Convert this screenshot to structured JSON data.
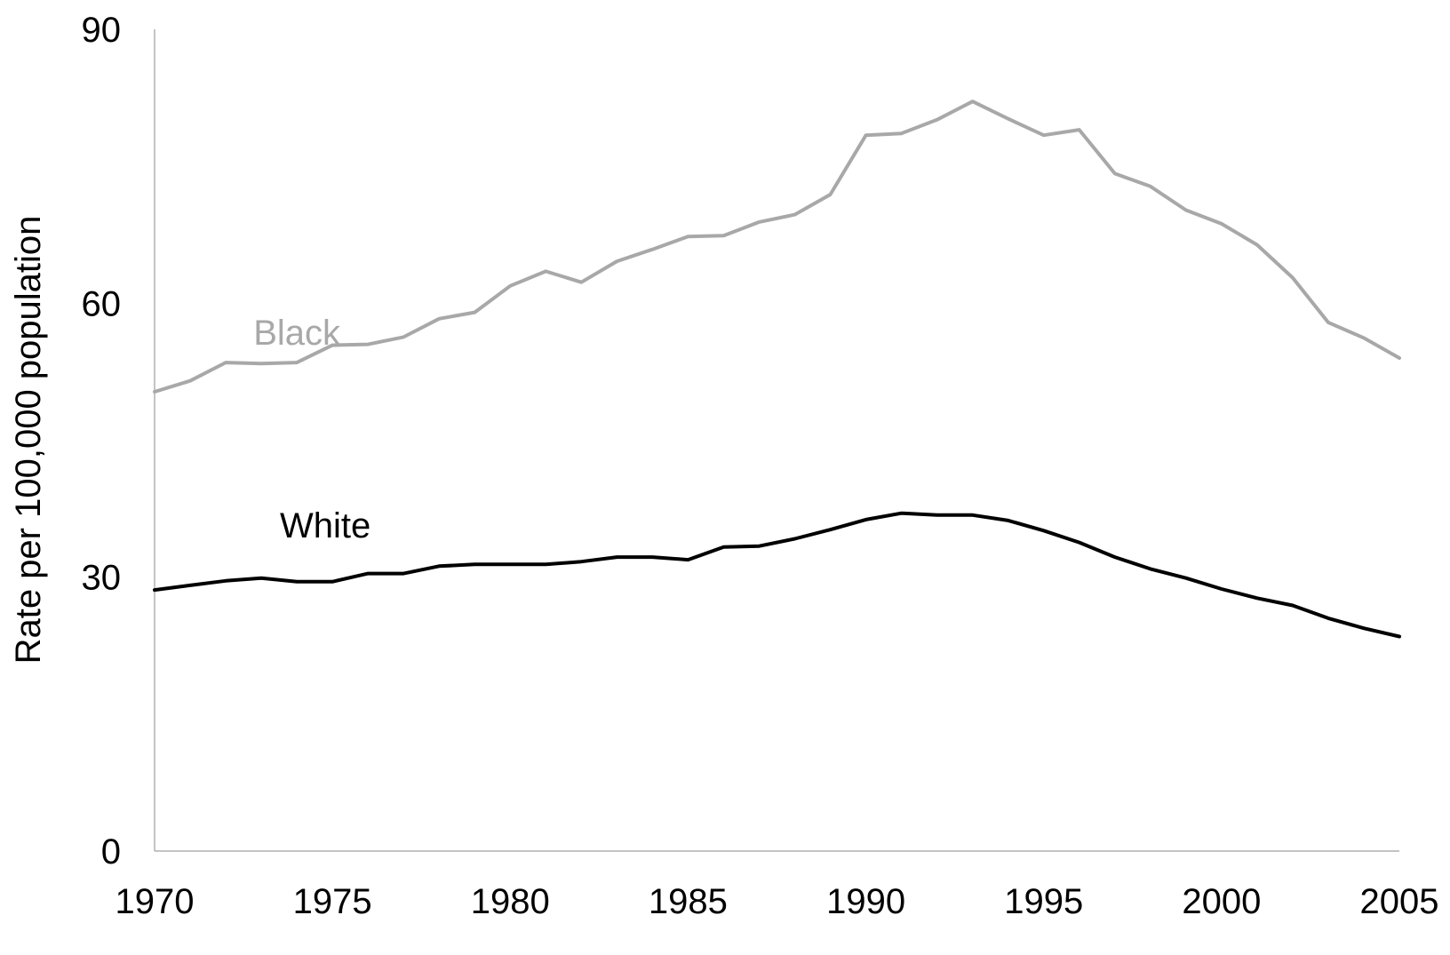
{
  "chart_data": {
    "type": "line",
    "title": "",
    "xlabel": "",
    "ylabel": "Rate per 100,000 population",
    "xlim": [
      1970,
      2005
    ],
    "ylim": [
      0,
      90
    ],
    "xticks": [
      1970,
      1975,
      1980,
      1985,
      1990,
      1995,
      2000,
      2005
    ],
    "yticks": [
      0,
      30,
      60,
      90
    ],
    "grid": false,
    "legend": "inline labels",
    "x": [
      1970,
      1971,
      1972,
      1973,
      1974,
      1975,
      1976,
      1977,
      1978,
      1979,
      1980,
      1981,
      1982,
      1983,
      1984,
      1985,
      1986,
      1987,
      1988,
      1989,
      1990,
      1991,
      1992,
      1993,
      1994,
      1995,
      1996,
      1997,
      1998,
      1999,
      2000,
      2001,
      2002,
      2003,
      2004,
      2005
    ],
    "series": [
      {
        "name": "Black",
        "color": "#a8a8a8",
        "values": [
          50.3,
          51.5,
          53.5,
          53.4,
          53.5,
          55.4,
          55.5,
          56.3,
          58.3,
          59.0,
          61.9,
          63.5,
          62.3,
          64.6,
          65.9,
          67.3,
          67.4,
          68.9,
          69.7,
          71.9,
          78.4,
          78.6,
          80.1,
          82.1,
          80.2,
          78.4,
          79.0,
          74.2,
          72.8,
          70.2,
          68.7,
          66.4,
          62.8,
          57.9,
          56.2,
          54.0
        ]
      },
      {
        "name": "White",
        "color": "#000000",
        "values": [
          28.6,
          29.1,
          29.6,
          29.9,
          29.5,
          29.5,
          30.4,
          30.4,
          31.2,
          31.4,
          31.4,
          31.4,
          31.7,
          32.2,
          32.2,
          31.9,
          33.3,
          33.4,
          34.2,
          35.2,
          36.3,
          37.0,
          36.8,
          36.8,
          36.2,
          35.1,
          33.8,
          32.2,
          30.9,
          29.9,
          28.7,
          27.7,
          26.9,
          25.5,
          24.4,
          23.5
        ]
      }
    ]
  }
}
